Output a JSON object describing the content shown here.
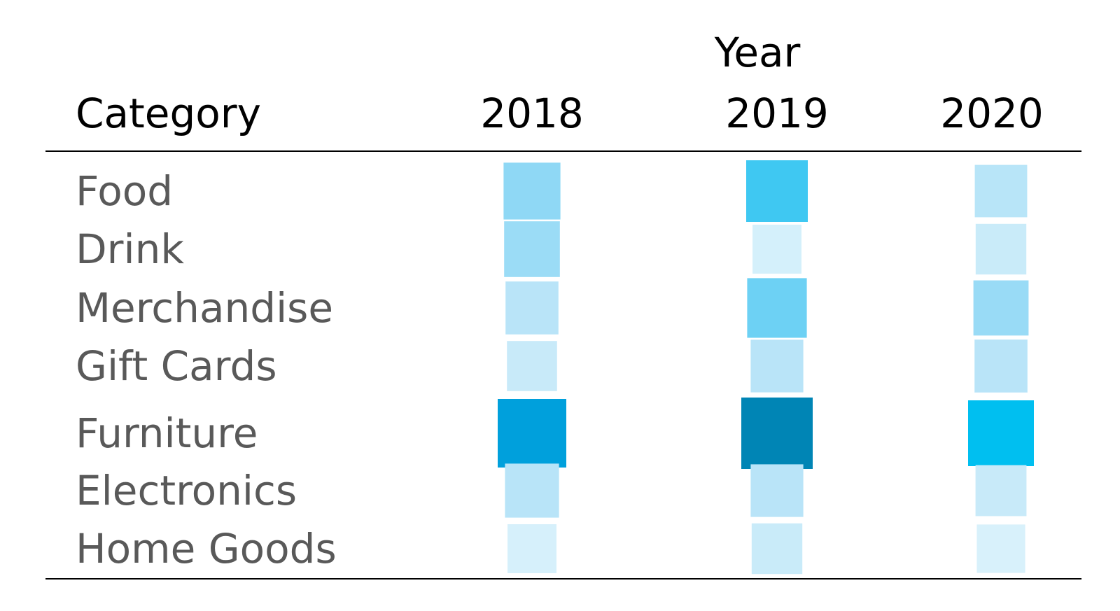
{
  "chart_data": {
    "type": "heatmap",
    "column_group_label": "Year",
    "row_header_label": "Category",
    "columns": [
      "2018",
      "2019",
      "2020"
    ],
    "rows": [
      "Food",
      "Drink",
      "Merchandise",
      "Gift Cards",
      "Furniture",
      "Electronics",
      "Home Goods"
    ],
    "values": [
      [
        0.48,
        0.65,
        0.32
      ],
      [
        0.44,
        0.2,
        0.26
      ],
      [
        0.34,
        0.58,
        0.42
      ],
      [
        0.24,
        0.33,
        0.34
      ],
      [
        0.9,
        1.0,
        0.8
      ],
      [
        0.38,
        0.33,
        0.27
      ],
      [
        0.2,
        0.26,
        0.18
      ]
    ],
    "size_encoding": true,
    "color_scale": {
      "low": "#d6f0fb",
      "mid": "#00bff0",
      "high": "#0085b5"
    },
    "cell_colors": [
      [
        "#8fd8f5",
        "#3fc8f2",
        "#b8e5f8"
      ],
      [
        "#9bdcf6",
        "#d4f0fb",
        "#c9ebf9"
      ],
      [
        "#b9e4f8",
        "#6dd1f4",
        "#99dbf6"
      ],
      [
        "#c8eaf9",
        "#b9e4f8",
        "#b9e4f8"
      ],
      [
        "#00a0dc",
        "#0085b5",
        "#00bff0"
      ],
      [
        "#b8e4f8",
        "#b9e4f8",
        "#c8eaf9"
      ],
      [
        "#d6f0fb",
        "#c9ebf9",
        "#d8f1fb"
      ]
    ]
  }
}
